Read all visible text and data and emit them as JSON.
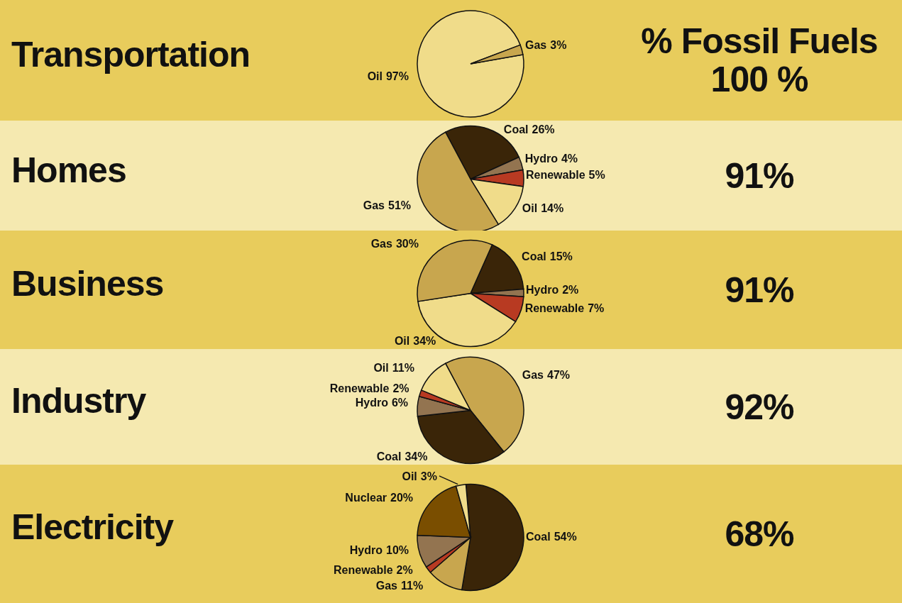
{
  "chart_data": [
    {
      "type": "pie",
      "title": "Transportation",
      "categories": [
        "Oil",
        "Gas"
      ],
      "values": [
        97,
        3
      ],
      "colors": [
        "#f0dc8a",
        "#c8a64e"
      ],
      "value_labels": [
        "97%",
        "3%"
      ],
      "annotations": [
        "% Fossil Fuels",
        "100 %"
      ]
    },
    {
      "type": "pie",
      "title": "Homes",
      "categories": [
        "Coal",
        "Hydro",
        "Renewable",
        "Oil",
        "Gas"
      ],
      "values": [
        26,
        4,
        5,
        14,
        51
      ],
      "colors": [
        "#3a2508",
        "#937450",
        "#b83a22",
        "#f0dc8a",
        "#c8a64e"
      ],
      "value_labels": [
        "26%",
        "4%",
        "5%",
        "14%",
        "51%"
      ],
      "annotations": [
        "91%"
      ]
    },
    {
      "type": "pie",
      "title": "Business",
      "categories": [
        "Coal",
        "Hydro",
        "Renewable",
        "Oil",
        "Gas"
      ],
      "values": [
        15,
        2,
        7,
        34,
        30
      ],
      "colors": [
        "#3a2508",
        "#937450",
        "#b83a22",
        "#f0dc8a",
        "#c8a64e"
      ],
      "value_labels": [
        "15%",
        "2%",
        "7%",
        "34%",
        "30%"
      ],
      "annotations": [
        "91%"
      ]
    },
    {
      "type": "pie",
      "title": "Industry",
      "categories": [
        "Gas",
        "Coal",
        "Hydro",
        "Renewable",
        "Oil"
      ],
      "values": [
        47,
        34,
        6,
        2,
        11
      ],
      "colors": [
        "#c8a64e",
        "#3a2508",
        "#937450",
        "#b83a22",
        "#f0dc8a"
      ],
      "value_labels": [
        "47%",
        "34%",
        "6%",
        "2%",
        "11%"
      ],
      "annotations": [
        "92%"
      ]
    },
    {
      "type": "pie",
      "title": "Electricity",
      "categories": [
        "Coal",
        "Gas",
        "Renewable",
        "Hydro",
        "Nuclear",
        "Oil"
      ],
      "values": [
        54,
        11,
        2,
        10,
        20,
        3
      ],
      "colors": [
        "#3a2508",
        "#c8a64e",
        "#b83a22",
        "#937450",
        "#7a4e00",
        "#f0dc8a"
      ],
      "value_labels": [
        "54%",
        "11%",
        "2%",
        "10%",
        "20%",
        "3%"
      ],
      "annotations": [
        "68%"
      ]
    }
  ]
}
